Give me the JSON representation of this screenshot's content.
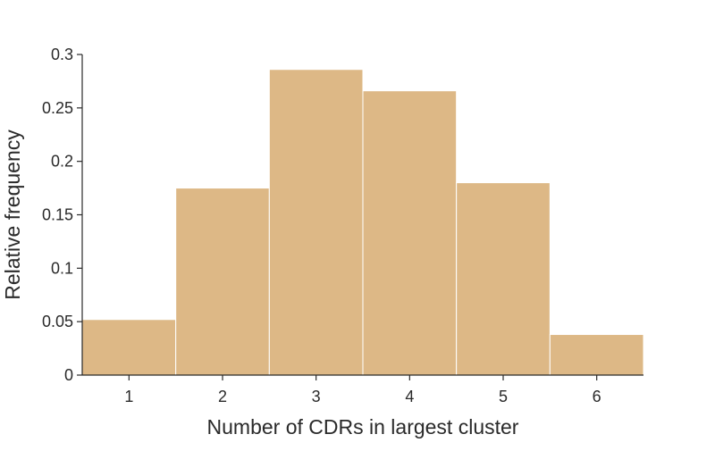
{
  "chart_data": {
    "type": "bar",
    "title": "",
    "xlabel": "Number of CDRs in largest cluster",
    "ylabel": "Relative frequency",
    "categories": [
      "1",
      "2",
      "3",
      "4",
      "5",
      "6"
    ],
    "values": [
      0.052,
      0.175,
      0.286,
      0.266,
      0.18,
      0.038
    ],
    "ylim": [
      0,
      0.3
    ],
    "yticks": [
      0,
      0.05,
      0.1,
      0.15,
      0.2,
      0.25,
      0.3
    ],
    "ytick_labels": [
      "0",
      "0.05",
      "0.1",
      "0.15",
      "0.2",
      "0.25",
      "0.3"
    ],
    "grid": false,
    "bar_color": "#ddb886",
    "bar_edge_color": "#ffffff",
    "axis_color": "#2a2a2a"
  }
}
